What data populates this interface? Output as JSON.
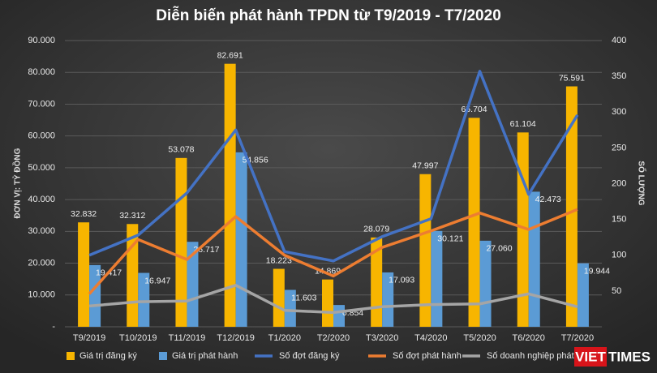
{
  "chart_data": {
    "type": "bar",
    "title": "Diễn biến phát hành TPDN từ T9/2019 - T7/2020",
    "y_label": "ĐƠN VỊ: TỶ ĐỒNG",
    "y2_label": "SỐ LƯỢNG",
    "categories": [
      "T9/2019",
      "T10/2019",
      "T11/2019",
      "T12/2019",
      "T1/2020",
      "T2/2020",
      "T3/2020",
      "T4/2020",
      "T5/2020",
      "T6/2020",
      "T7/2020"
    ],
    "ylim": [
      0,
      90000
    ],
    "yticks": [
      {
        "value": 0,
        "label": "-"
      },
      {
        "value": 10000,
        "label": "10.000"
      },
      {
        "value": 20000,
        "label": "20.000"
      },
      {
        "value": 30000,
        "label": "30.000"
      },
      {
        "value": 40000,
        "label": "40.000"
      },
      {
        "value": 50000,
        "label": "50.000"
      },
      {
        "value": 60000,
        "label": "60.000"
      },
      {
        "value": 70000,
        "label": "70.000"
      },
      {
        "value": 80000,
        "label": "80.000"
      },
      {
        "value": 90000,
        "label": "90.000"
      }
    ],
    "y2lim": [
      0,
      400
    ],
    "y2ticks": [
      50,
      100,
      150,
      200,
      250,
      300,
      350,
      400
    ],
    "grid": true,
    "legend": "bottom",
    "series": [
      {
        "name": "Giá trị đăng ký",
        "type": "bar",
        "color": "#f7b500",
        "values": [
          32832,
          32312,
          53078,
          82691,
          18223,
          14869,
          28079,
          47997,
          65704,
          61104,
          75591
        ],
        "value_labels": [
          "32.832",
          "32.312",
          "53.078",
          "82.691",
          "18.223",
          "14.869",
          "28.079",
          "47.997",
          "65.704",
          "61.104",
          "75.591"
        ]
      },
      {
        "name": "Giá trị phát hành",
        "type": "bar",
        "color": "#5b9bd5",
        "values": [
          19417,
          16947,
          26717,
          54856,
          11603,
          6854,
          17093,
          30121,
          27060,
          42473,
          19944
        ],
        "value_labels": [
          "19.417",
          "16.947",
          "26.717",
          "54.856",
          "11.603",
          "6.854",
          "17.093",
          "30.121",
          "27.060",
          "42.473",
          "19.944"
        ]
      },
      {
        "name": "Số đợt đăng ký",
        "type": "line",
        "axis": "y2",
        "color": "#4472c4",
        "values": [
          100,
          128,
          187,
          275,
          105,
          92,
          126,
          151,
          357,
          185,
          296
        ]
      },
      {
        "name": "Số đợt phát hành",
        "type": "line",
        "axis": "y2",
        "color": "#ed7d31",
        "values": [
          46,
          122,
          94,
          154,
          100,
          71,
          111,
          134,
          159,
          136,
          164
        ]
      },
      {
        "name": "Số doanh nghiệp phát hành",
        "type": "line",
        "axis": "y2",
        "color": "#a5a5a5",
        "values": [
          29,
          35,
          36,
          58,
          23,
          20,
          28,
          31,
          32,
          46,
          28
        ]
      }
    ],
    "watermark": [
      "VIET",
      "TIMES"
    ]
  }
}
